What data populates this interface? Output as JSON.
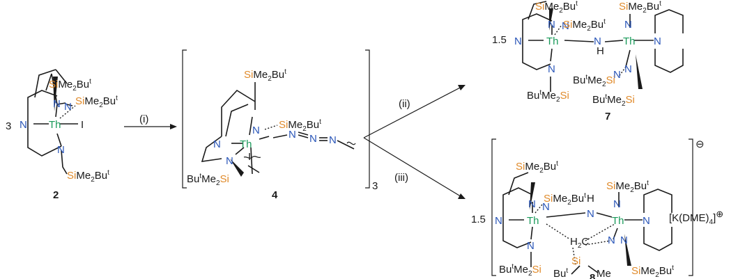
{
  "colors": {
    "si": "#e08a2a",
    "n": "#2a56b8",
    "th": "#1a9a5a",
    "ink": "#1a1a1a"
  },
  "labels": {
    "coef3": "3",
    "coef15a": "1.5",
    "coef15b": "1.5",
    "cmp2": "2",
    "cmp4": "4",
    "cmp7": "7",
    "cmp8": "8",
    "sub3": "3",
    "step_i": "(i)",
    "step_ii": "(ii)",
    "step_iii": "(iii)",
    "counter": "[K(DME)",
    "counter_sub": "4",
    "counter_close": "]",
    "minus": "⊖",
    "plus": "⊕"
  },
  "atoms": {
    "Th": "Th",
    "N": "N",
    "I": "I",
    "H": "H",
    "Si": "Si",
    "Me": "Me",
    "SiMe": "SiMe",
    "two": "2",
    "Bu": "Bu",
    "t": "t",
    "Me2": "Me",
    "C": "C"
  }
}
